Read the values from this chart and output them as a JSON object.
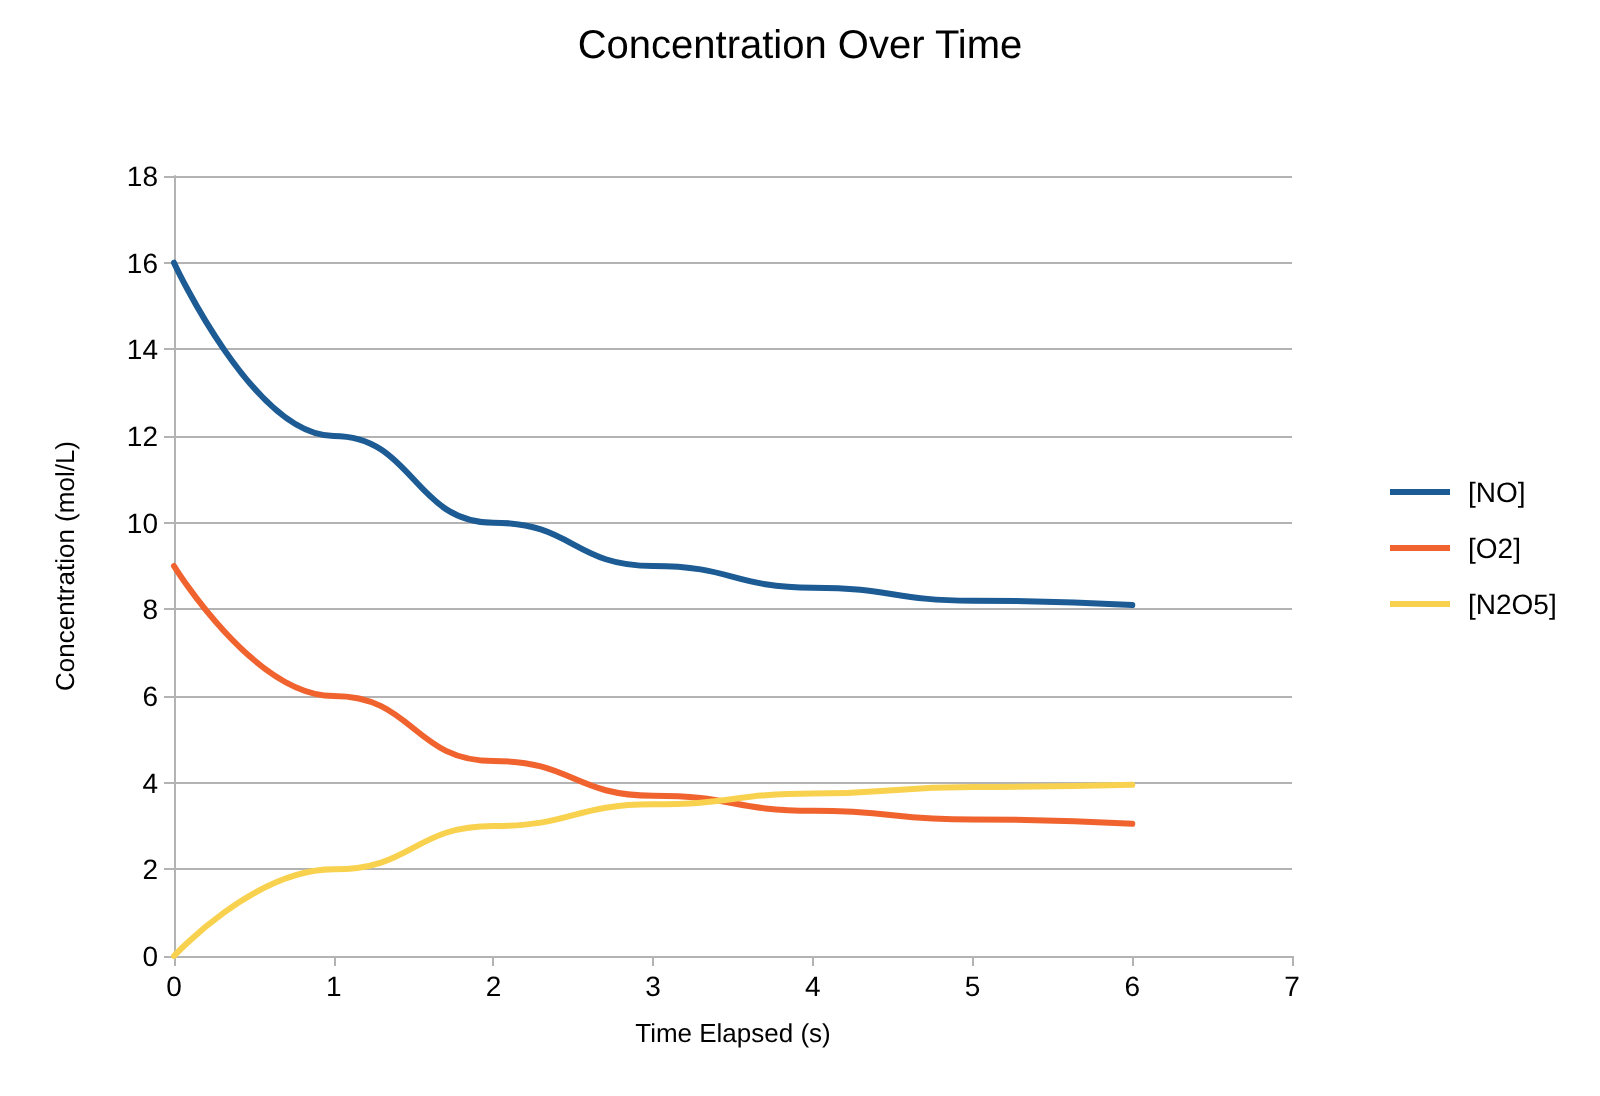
{
  "chart_data": {
    "type": "line",
    "title": "Concentration Over Time",
    "xlabel": "Time Elapsed (s)",
    "ylabel": "Concentration (mol/L)",
    "x": [
      0,
      1,
      2,
      3,
      4,
      5,
      6
    ],
    "series": [
      {
        "name": "[NO]",
        "color": "#1c5b93",
        "values": [
          16,
          12,
          10,
          9,
          8.5,
          8.2,
          8.1
        ]
      },
      {
        "name": "[O2]",
        "color": "#f0632e",
        "values": [
          9,
          6,
          4.5,
          3.7,
          3.35,
          3.15,
          3.05
        ]
      },
      {
        "name": "[N2O5]",
        "color": "#f8d24e",
        "values": [
          0,
          2,
          3,
          3.5,
          3.75,
          3.9,
          3.95
        ]
      }
    ],
    "xlim": [
      0,
      7
    ],
    "xticks": [
      0,
      1,
      2,
      3,
      4,
      5,
      6,
      7
    ],
    "ylim": [
      0,
      18
    ],
    "yticks": [
      0,
      2,
      4,
      6,
      8,
      10,
      12,
      14,
      16,
      18
    ],
    "grid": "y",
    "legend": "right",
    "marker": "none",
    "line_style": "solid"
  }
}
